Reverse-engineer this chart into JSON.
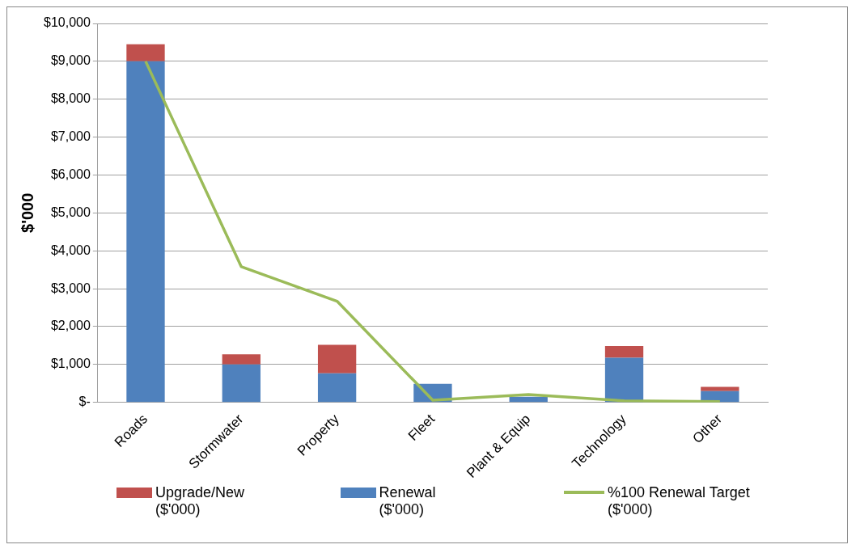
{
  "chart_data": {
    "type": "bar",
    "ylabel": "$'000",
    "categories": [
      "Roads",
      "Stormwater",
      "Property",
      "Fleet",
      "Plant & Equip",
      "Technology",
      "Other"
    ],
    "stacked": true,
    "series": [
      {
        "name": "Renewal ($'000)",
        "color": "#4f81bd",
        "values": [
          9000,
          1000,
          770,
          490,
          150,
          1180,
          300
        ]
      },
      {
        "name": "Upgrade/New ($'000)",
        "color": "#c0504d",
        "values": [
          450,
          270,
          750,
          0,
          0,
          310,
          110
        ]
      },
      {
        "name": "%100 Renewal Target ($'000)",
        "type": "line",
        "color": "#9bbb59",
        "values": [
          9000,
          3580,
          2670,
          60,
          210,
          40,
          20
        ],
        "marker": "none"
      }
    ],
    "ylim": [
      0,
      10000
    ],
    "yticks": [
      {
        "value": 0,
        "label": "$-"
      },
      {
        "value": 1000,
        "label": "$1,000"
      },
      {
        "value": 2000,
        "label": "$2,000"
      },
      {
        "value": 3000,
        "label": "$3,000"
      },
      {
        "value": 4000,
        "label": "$4,000"
      },
      {
        "value": 5000,
        "label": "$5,000"
      },
      {
        "value": 6000,
        "label": "$6,000"
      },
      {
        "value": 7000,
        "label": "$7,000"
      },
      {
        "value": 8000,
        "label": "$8,000"
      },
      {
        "value": 9000,
        "label": "$9,000"
      },
      {
        "value": 10000,
        "label": "$10,000"
      }
    ],
    "grid": "y",
    "legend": "bottom"
  }
}
